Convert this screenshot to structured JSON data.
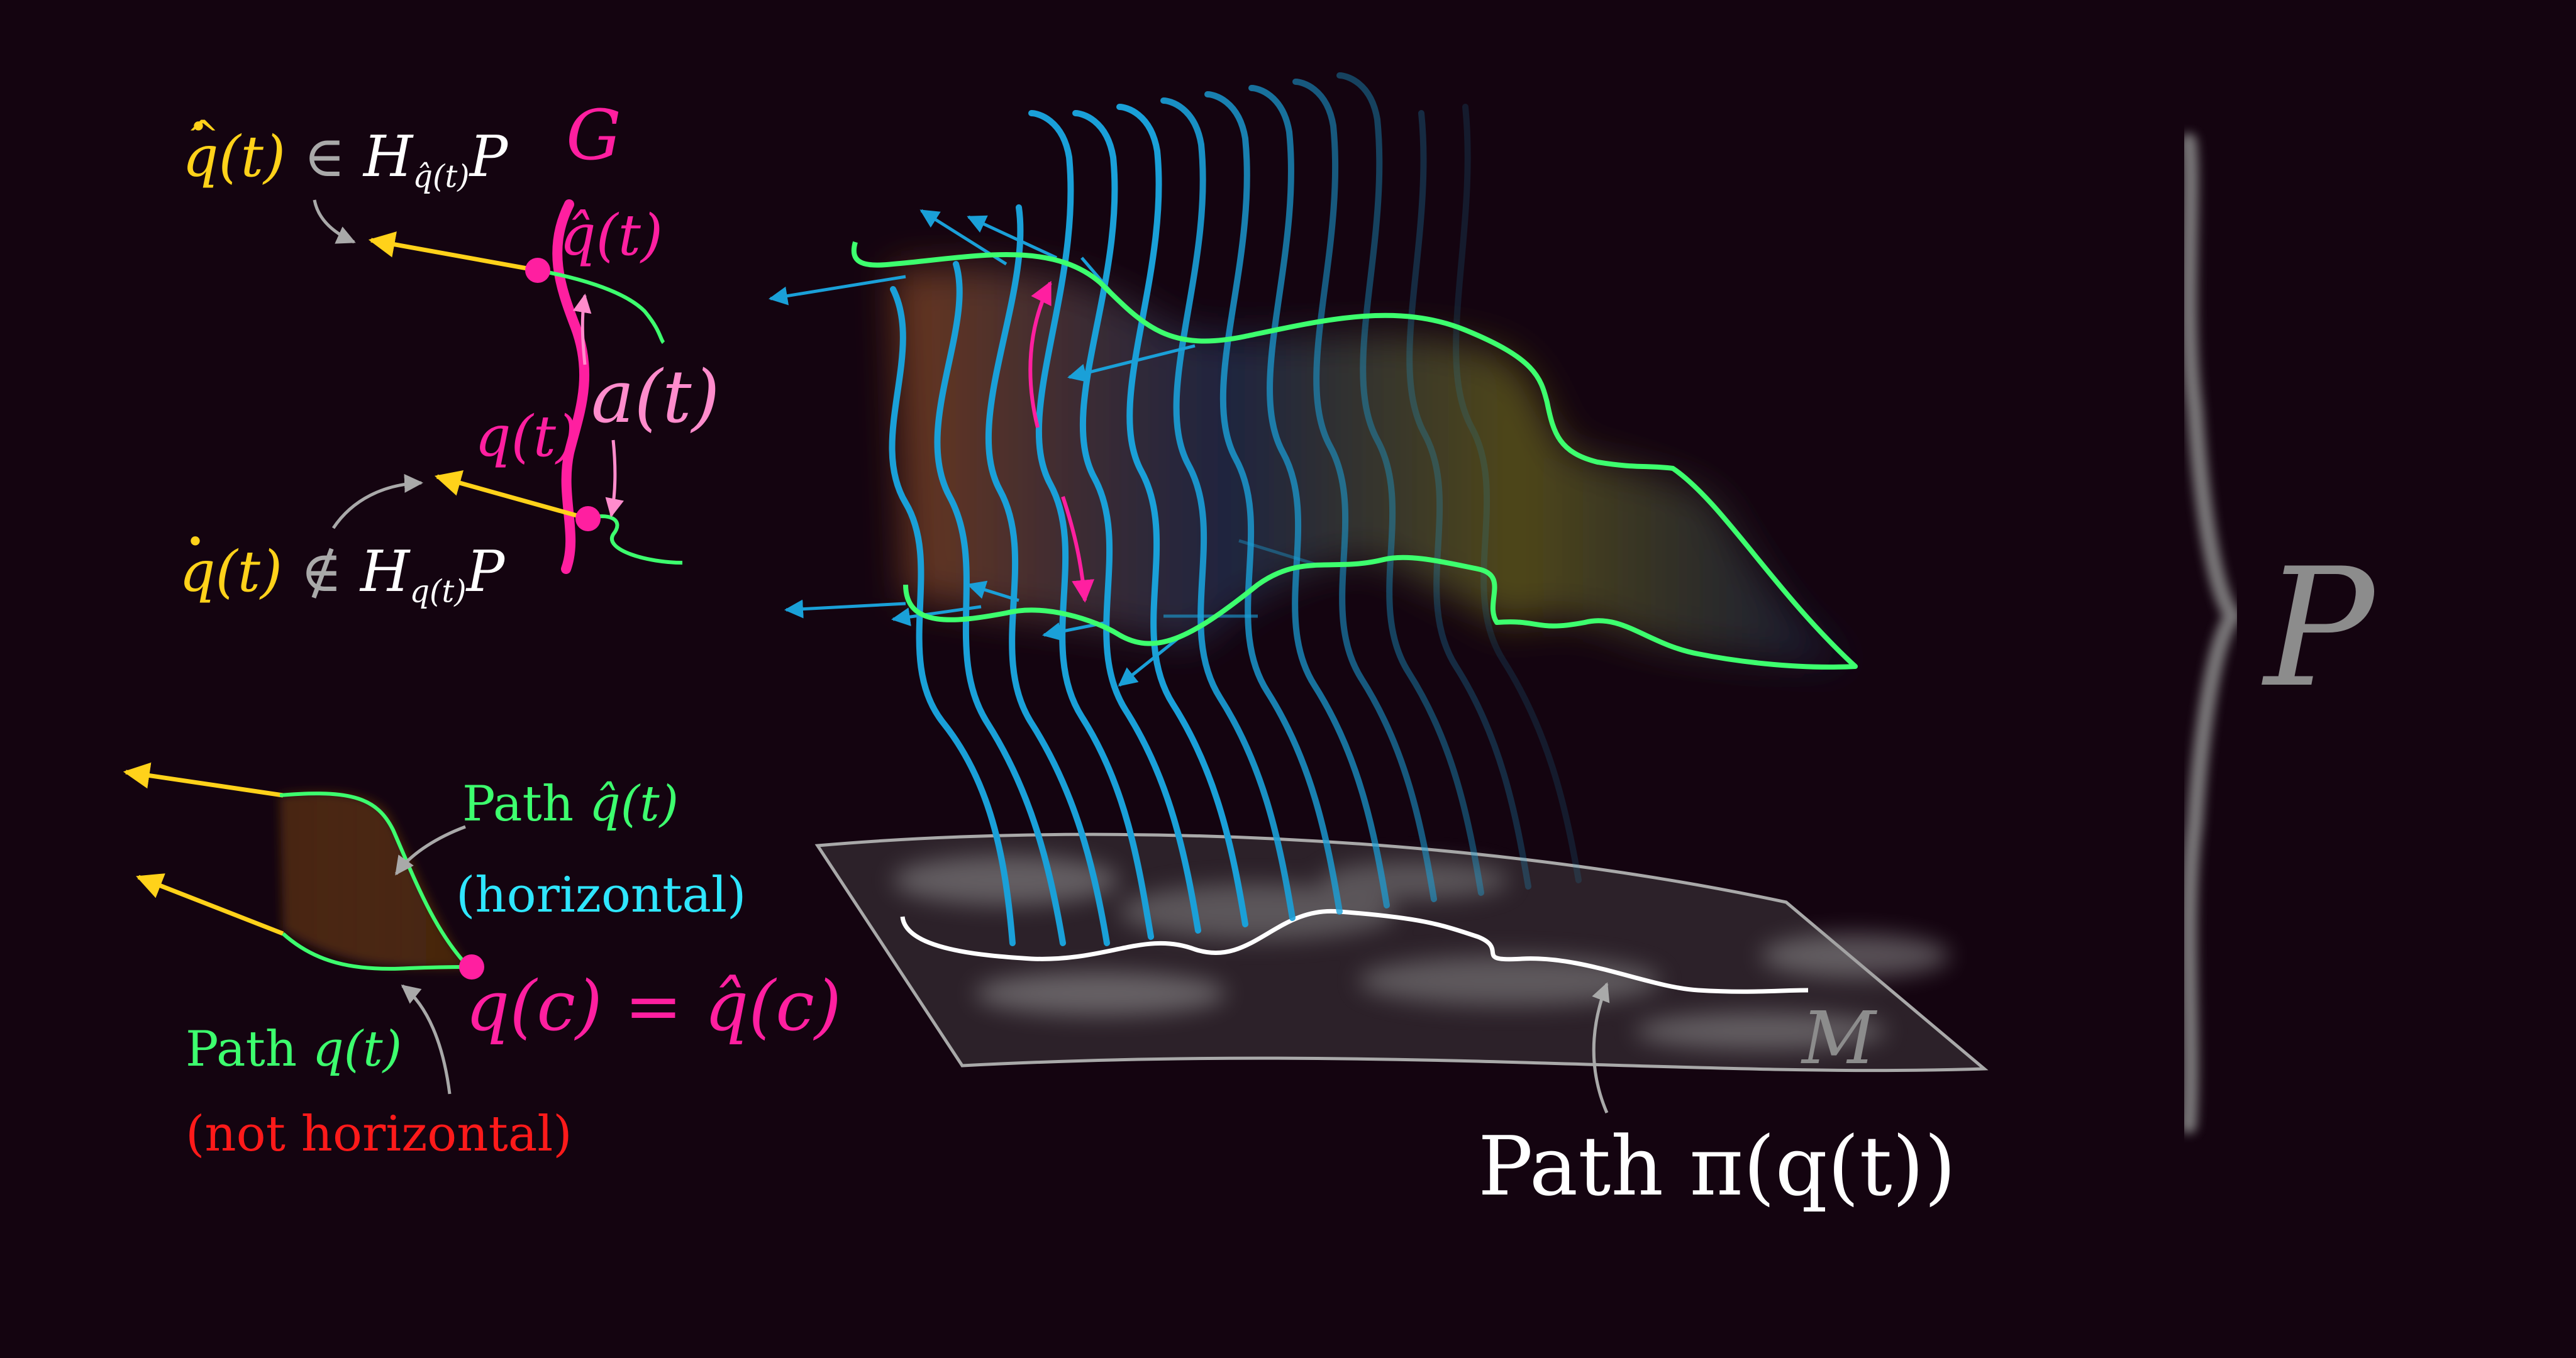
{
  "colors": {
    "background": "#140410",
    "yellow": "#ffd21a",
    "pink": "#ff1fa0",
    "light_pink": "#ff8ccc",
    "green": "#3dff6e",
    "cyan": "#2fe6ff",
    "red": "#ff1a1a",
    "blue_fiber": "#1aa0d8",
    "grey": "#a9a9a9",
    "white": "#ffffff"
  },
  "labels": {
    "q_hat_dot": "q",
    "q_hat_dot_arg": "(t)",
    "in_symbol": "∈",
    "H": "H",
    "H_sub_top": "q̂(t)",
    "P_top": "P",
    "G": "G",
    "q_hat": "q̂(t)",
    "a_t": "a(t)",
    "q_t": "q(t)",
    "q_dot": "q",
    "q_dot_arg": "(t)",
    "not_in_symbol": "∉",
    "H_sub_bottom": "q(t)",
    "P_bottom": "P",
    "path_q_hat_prefix": "Path ",
    "path_q_hat_var": "q̂(t)",
    "horizontal": "(horizontal)",
    "q_c": "q(c) = q̂(c)",
    "path_q_prefix": "Path ",
    "path_q_var": "q(t)",
    "not_horizontal": "(not horizontal)",
    "M": "M",
    "path_pi": "Path π(q(t))",
    "P_bundle": "P"
  },
  "icons": {
    "arrow": "arrow-icon",
    "bracket": "curly-brace-icon"
  }
}
